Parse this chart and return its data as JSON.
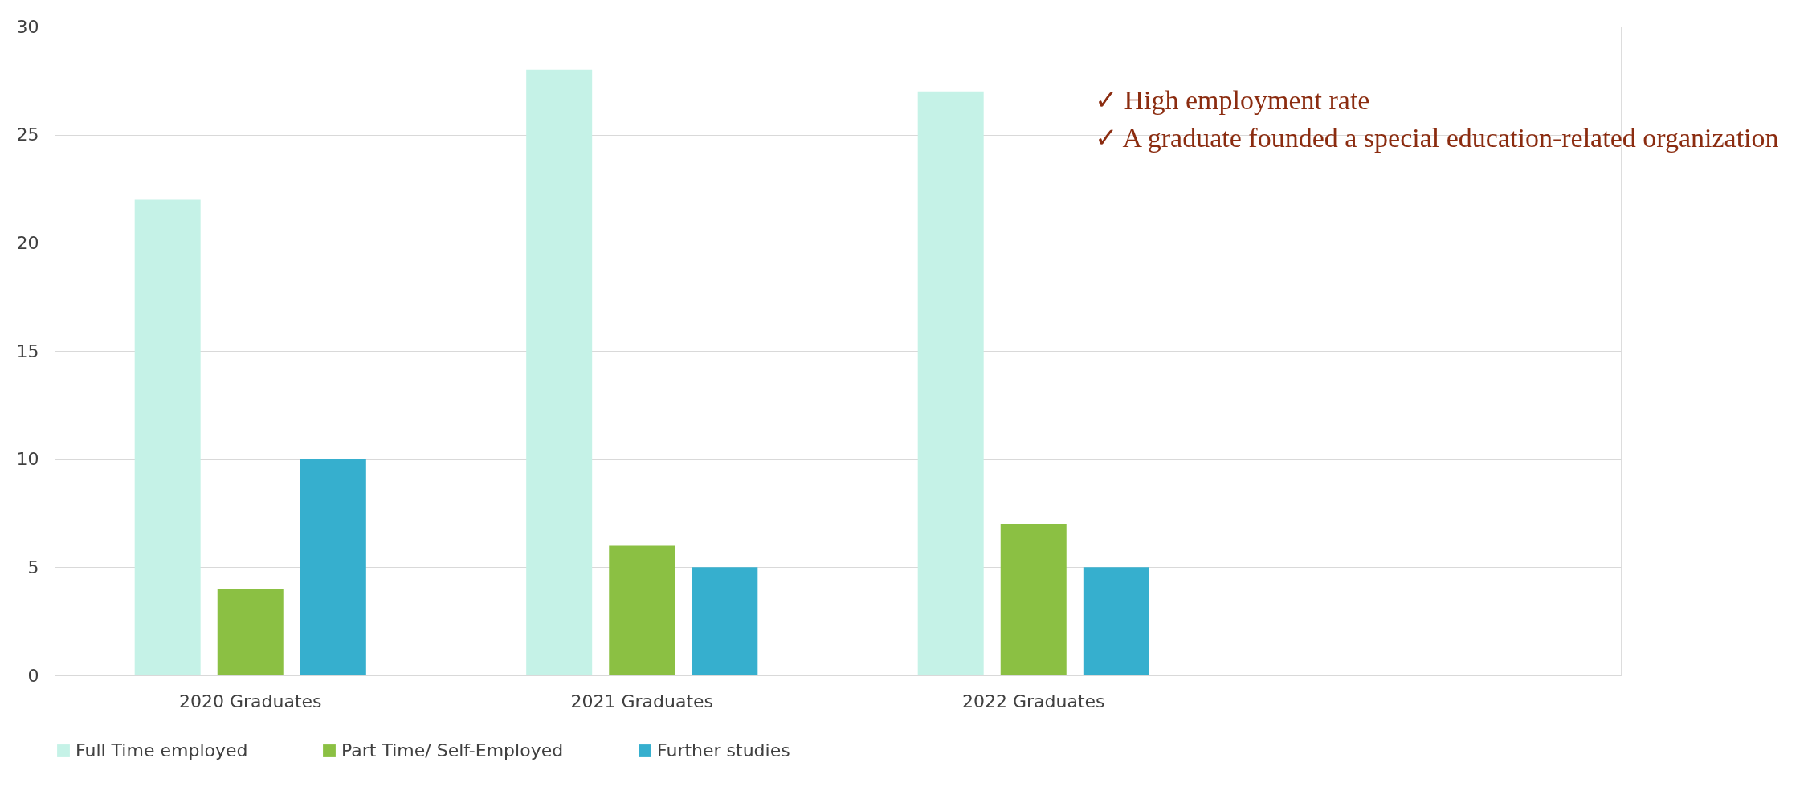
{
  "chart_data": {
    "type": "bar",
    "categories": [
      "2020 Graduates",
      "2021 Graduates",
      "2022 Graduates",
      null
    ],
    "series": [
      {
        "name": "Full Time employed",
        "color": "#c5f2e7",
        "values": [
          22,
          28,
          27,
          null
        ]
      },
      {
        "name": "Part Time/ Self-Employed",
        "color": "#8bc043",
        "values": [
          4,
          6,
          7,
          null
        ]
      },
      {
        "name": "Further studies",
        "color": "#36afce",
        "values": [
          10,
          5,
          5,
          null
        ]
      }
    ],
    "ylim": [
      0,
      30
    ],
    "yticks": [
      0,
      5,
      10,
      15,
      20,
      25,
      30
    ],
    "grid": "y",
    "legend": "bottom",
    "annotations": [
      "✓ High employment rate",
      "✓ A graduate founded a special education-related organization"
    ]
  }
}
